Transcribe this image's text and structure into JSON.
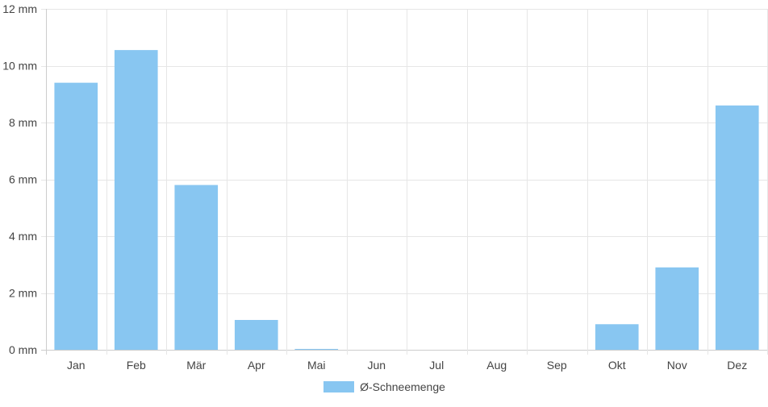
{
  "chart_data": {
    "type": "bar",
    "categories": [
      "Jan",
      "Feb",
      "Mär",
      "Apr",
      "Mai",
      "Jun",
      "Jul",
      "Aug",
      "Sep",
      "Okt",
      "Nov",
      "Dez"
    ],
    "series": [
      {
        "name": "Ø-Schneemenge",
        "values": [
          9.4,
          10.55,
          5.8,
          1.05,
          0.03,
          0,
          0,
          0,
          0,
          0.9,
          2.9,
          8.6
        ],
        "color": "#88c6f1"
      }
    ],
    "y_tick_labels": [
      "0 mm",
      "2 mm",
      "4 mm",
      "6 mm",
      "8 mm",
      "10 mm",
      "12 mm"
    ],
    "ylim": [
      0,
      12
    ],
    "grid": true,
    "legend_position": "bottom-center"
  },
  "legend": {
    "label": "Ø-Schneemenge",
    "color": "#88c6f1"
  }
}
